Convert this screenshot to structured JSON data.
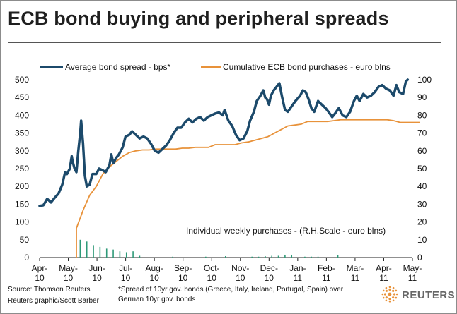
{
  "title": "ECB bond buying and peripheral spreads",
  "source": {
    "line1": "Source: Thomson Reuters",
    "line2": "Reuters graphic/Scott Barber"
  },
  "footnote": {
    "line1": "*Spread of 10yr gov. bonds (Greece, Italy, Ireland, Portugal, Spain) over",
    "line2": "German 10yr gov. bonds"
  },
  "logo_text": "REUTERS",
  "colors": {
    "spread_line": "#1c4a6b",
    "purchases_line": "#e8923a",
    "weekly_bars": "#2e9a78",
    "axis": "#222222",
    "logo_accent": "#e8923a"
  },
  "chart_data": {
    "type": "line",
    "x_tick_labels": [
      "Apr-10",
      "May-10",
      "Jun-10",
      "Jul-10",
      "Aug-10",
      "Sep-10",
      "Oct-10",
      "Nov-10",
      "Dec-10",
      "Jan-11",
      "Feb-11",
      "Mar-11",
      "Apr-11",
      "May-11"
    ],
    "x_range": [
      "2010-04-01",
      "2011-05-01"
    ],
    "y_left": {
      "ticks": [
        0,
        50,
        100,
        150,
        200,
        250,
        300,
        350,
        400,
        450,
        500
      ],
      "range": [
        0,
        500
      ]
    },
    "y_right": {
      "ticks": [
        0,
        10,
        20,
        30,
        40,
        50,
        60,
        70,
        80,
        90,
        100
      ],
      "range": [
        0,
        100
      ]
    },
    "legend": {
      "spread": "Average bond spread - bps*",
      "purchases": "Cumulative ECB bond purchases - euro blns",
      "weekly": "Individual weekly purchases - (R.H.Scale - euro blns)"
    },
    "series": [
      {
        "name": "Average bond spread - bps*",
        "axis": "left",
        "points": [
          [
            "2010-04-01",
            145
          ],
          [
            "2010-04-05",
            147
          ],
          [
            "2010-04-09",
            165
          ],
          [
            "2010-04-13",
            155
          ],
          [
            "2010-04-17",
            168
          ],
          [
            "2010-04-21",
            180
          ],
          [
            "2010-04-25",
            205
          ],
          [
            "2010-04-28",
            240
          ],
          [
            "2010-04-30",
            235
          ],
          [
            "2010-05-03",
            250
          ],
          [
            "2010-05-05",
            285
          ],
          [
            "2010-05-06",
            270
          ],
          [
            "2010-05-08",
            250
          ],
          [
            "2010-05-10",
            240
          ],
          [
            "2010-05-12",
            300
          ],
          [
            "2010-05-14",
            350
          ],
          [
            "2010-05-15",
            385
          ],
          [
            "2010-05-17",
            320
          ],
          [
            "2010-05-19",
            230
          ],
          [
            "2010-05-21",
            200
          ],
          [
            "2010-05-24",
            205
          ],
          [
            "2010-05-27",
            235
          ],
          [
            "2010-05-31",
            235
          ],
          [
            "2010-06-03",
            250
          ],
          [
            "2010-06-07",
            245
          ],
          [
            "2010-06-10",
            240
          ],
          [
            "2010-06-14",
            260
          ],
          [
            "2010-06-16",
            290
          ],
          [
            "2010-06-18",
            265
          ],
          [
            "2010-06-21",
            280
          ],
          [
            "2010-06-24",
            290
          ],
          [
            "2010-06-28",
            310
          ],
          [
            "2010-07-01",
            340
          ],
          [
            "2010-07-05",
            345
          ],
          [
            "2010-07-08",
            355
          ],
          [
            "2010-07-12",
            345
          ],
          [
            "2010-07-16",
            335
          ],
          [
            "2010-07-20",
            340
          ],
          [
            "2010-07-24",
            335
          ],
          [
            "2010-07-28",
            320
          ],
          [
            "2010-08-01",
            300
          ],
          [
            "2010-08-05",
            295
          ],
          [
            "2010-08-09",
            305
          ],
          [
            "2010-08-13",
            315
          ],
          [
            "2010-08-17",
            330
          ],
          [
            "2010-08-21",
            350
          ],
          [
            "2010-08-25",
            365
          ],
          [
            "2010-08-29",
            365
          ],
          [
            "2010-09-02",
            380
          ],
          [
            "2010-09-06",
            390
          ],
          [
            "2010-09-10",
            380
          ],
          [
            "2010-09-14",
            390
          ],
          [
            "2010-09-18",
            395
          ],
          [
            "2010-09-22",
            385
          ],
          [
            "2010-09-26",
            395
          ],
          [
            "2010-09-30",
            400
          ],
          [
            "2010-10-04",
            405
          ],
          [
            "2010-10-08",
            408
          ],
          [
            "2010-10-12",
            400
          ],
          [
            "2010-10-14",
            415
          ],
          [
            "2010-10-18",
            385
          ],
          [
            "2010-10-22",
            370
          ],
          [
            "2010-10-26",
            345
          ],
          [
            "2010-10-30",
            330
          ],
          [
            "2010-11-03",
            335
          ],
          [
            "2010-11-07",
            355
          ],
          [
            "2010-11-10",
            385
          ],
          [
            "2010-11-14",
            410
          ],
          [
            "2010-11-17",
            440
          ],
          [
            "2010-11-21",
            455
          ],
          [
            "2010-11-24",
            470
          ],
          [
            "2010-11-26",
            450
          ],
          [
            "2010-11-28",
            445
          ],
          [
            "2010-11-30",
            430
          ],
          [
            "2010-12-02",
            455
          ],
          [
            "2010-12-05",
            470
          ],
          [
            "2010-12-08",
            480
          ],
          [
            "2010-12-11",
            490
          ],
          [
            "2010-12-14",
            450
          ],
          [
            "2010-12-17",
            415
          ],
          [
            "2010-12-20",
            410
          ],
          [
            "2010-12-24",
            425
          ],
          [
            "2010-12-28",
            440
          ],
          [
            "2011-01-02",
            455
          ],
          [
            "2011-01-05",
            470
          ],
          [
            "2011-01-08",
            465
          ],
          [
            "2011-01-11",
            445
          ],
          [
            "2011-01-14",
            420
          ],
          [
            "2011-01-17",
            410
          ],
          [
            "2011-01-21",
            440
          ],
          [
            "2011-01-25",
            430
          ],
          [
            "2011-01-29",
            420
          ],
          [
            "2011-02-01",
            410
          ],
          [
            "2011-02-05",
            395
          ],
          [
            "2011-02-08",
            405
          ],
          [
            "2011-02-12",
            420
          ],
          [
            "2011-02-16",
            400
          ],
          [
            "2011-02-20",
            395
          ],
          [
            "2011-02-24",
            410
          ],
          [
            "2011-02-28",
            440
          ],
          [
            "2011-03-03",
            455
          ],
          [
            "2011-03-06",
            440
          ],
          [
            "2011-03-10",
            460
          ],
          [
            "2011-03-14",
            450
          ],
          [
            "2011-03-18",
            455
          ],
          [
            "2011-03-22",
            465
          ],
          [
            "2011-03-26",
            480
          ],
          [
            "2011-03-30",
            485
          ],
          [
            "2011-04-03",
            475
          ],
          [
            "2011-04-07",
            470
          ],
          [
            "2011-04-11",
            455
          ],
          [
            "2011-04-14",
            485
          ],
          [
            "2011-04-17",
            465
          ],
          [
            "2011-04-21",
            460
          ],
          [
            "2011-04-24",
            495
          ],
          [
            "2011-04-26",
            500
          ]
        ]
      },
      {
        "name": "Cumulative ECB bond purchases - euro blns",
        "axis": "right",
        "points": [
          [
            "2010-05-10",
            0
          ],
          [
            "2010-05-10",
            16.5
          ],
          [
            "2010-05-17",
            26.5
          ],
          [
            "2010-05-24",
            35
          ],
          [
            "2010-05-31",
            40
          ],
          [
            "2010-06-07",
            47
          ],
          [
            "2010-06-14",
            51
          ],
          [
            "2010-06-21",
            54
          ],
          [
            "2010-06-28",
            57
          ],
          [
            "2010-07-05",
            59
          ],
          [
            "2010-07-12",
            60
          ],
          [
            "2010-07-19",
            60.5
          ],
          [
            "2010-07-26",
            60.5
          ],
          [
            "2010-08-02",
            61
          ],
          [
            "2010-08-09",
            61
          ],
          [
            "2010-08-16",
            61
          ],
          [
            "2010-08-23",
            61
          ],
          [
            "2010-08-30",
            61.5
          ],
          [
            "2010-09-06",
            61.5
          ],
          [
            "2010-09-13",
            62
          ],
          [
            "2010-09-20",
            62
          ],
          [
            "2010-09-27",
            62
          ],
          [
            "2010-10-04",
            63.5
          ],
          [
            "2010-10-11",
            63.5
          ],
          [
            "2010-10-18",
            63.5
          ],
          [
            "2010-10-25",
            63.5
          ],
          [
            "2010-11-01",
            64.5
          ],
          [
            "2010-11-08",
            65
          ],
          [
            "2010-11-15",
            66
          ],
          [
            "2010-11-22",
            67
          ],
          [
            "2010-11-29",
            68
          ],
          [
            "2010-12-06",
            70
          ],
          [
            "2010-12-13",
            72
          ],
          [
            "2010-12-20",
            74
          ],
          [
            "2010-12-27",
            74.5
          ],
          [
            "2011-01-03",
            75
          ],
          [
            "2011-01-10",
            76.5
          ],
          [
            "2011-01-17",
            76.5
          ],
          [
            "2011-01-24",
            76.5
          ],
          [
            "2011-01-31",
            76.5
          ],
          [
            "2011-02-07",
            77
          ],
          [
            "2011-02-14",
            77.5
          ],
          [
            "2011-02-21",
            77.5
          ],
          [
            "2011-02-28",
            77.5
          ],
          [
            "2011-03-07",
            77.5
          ],
          [
            "2011-03-14",
            77.5
          ],
          [
            "2011-03-21",
            77.5
          ],
          [
            "2011-03-28",
            77.5
          ],
          [
            "2011-04-04",
            77.5
          ],
          [
            "2011-04-11",
            77
          ],
          [
            "2011-04-18",
            76
          ],
          [
            "2011-04-25",
            76
          ],
          [
            "2011-05-02",
            76
          ],
          [
            "2011-05-09",
            76
          ]
        ]
      },
      {
        "name": "Individual weekly purchases - (R.H.Scale - euro blns)",
        "axis": "right",
        "kind": "bar",
        "points": [
          [
            "2010-05-14",
            10
          ],
          [
            "2010-05-21",
            9
          ],
          [
            "2010-05-28",
            7
          ],
          [
            "2010-06-04",
            6
          ],
          [
            "2010-06-11",
            5
          ],
          [
            "2010-06-18",
            4.5
          ],
          [
            "2010-06-25",
            3.5
          ],
          [
            "2010-07-02",
            3
          ],
          [
            "2010-07-09",
            3.5
          ],
          [
            "2010-07-16",
            1
          ],
          [
            "2010-08-20",
            0.5
          ],
          [
            "2010-09-24",
            0.5
          ],
          [
            "2010-10-15",
            0.8
          ],
          [
            "2010-11-12",
            0.5
          ],
          [
            "2010-11-19",
            0.5
          ],
          [
            "2010-11-26",
            0.8
          ],
          [
            "2010-12-03",
            1
          ],
          [
            "2010-12-10",
            1
          ],
          [
            "2010-12-17",
            1.6
          ],
          [
            "2010-12-24",
            1.6
          ],
          [
            "2011-01-07",
            0.5
          ],
          [
            "2011-01-14",
            0.5
          ],
          [
            "2011-01-21",
            0.5
          ],
          [
            "2011-02-11",
            1.5
          ]
        ]
      }
    ]
  }
}
